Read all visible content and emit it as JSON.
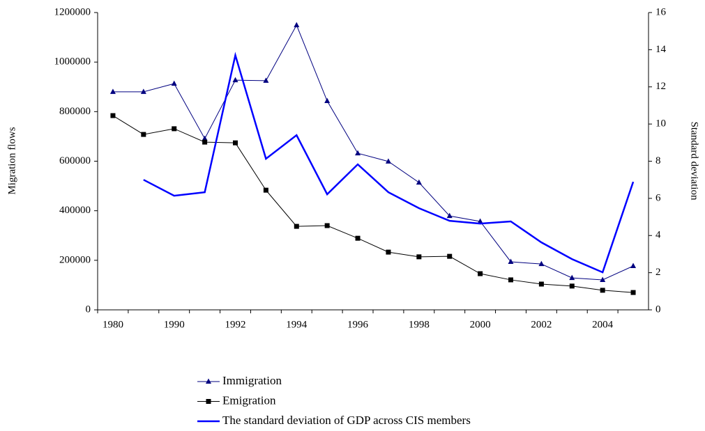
{
  "chart_data": {
    "type": "line",
    "categories": [
      "1980",
      null,
      "1990",
      null,
      "1992",
      null,
      "1994",
      null,
      "1996",
      null,
      "1998",
      null,
      "2000",
      null,
      "2002",
      null,
      "2004",
      null
    ],
    "ylabel": "Migration flows",
    "y2label": "Standard deviation",
    "ylim": [
      0,
      1200000
    ],
    "yticks": [
      0,
      200000,
      400000,
      600000,
      800000,
      1000000,
      1200000
    ],
    "y2lim": [
      0,
      16
    ],
    "y2ticks": [
      0,
      2,
      4,
      6,
      8,
      10,
      12,
      14,
      16
    ],
    "legend": "bottom",
    "series": [
      {
        "name": "Immigration",
        "color": "#000080",
        "marker": "triangle",
        "values": [
          880000,
          880000,
          913000,
          691000,
          927000,
          925000,
          1149000,
          843000,
          632000,
          599000,
          514000,
          379000,
          357000,
          194000,
          185000,
          129000,
          121000,
          177000
        ]
      },
      {
        "name": "Emigration",
        "color": "#000000",
        "marker": "square",
        "values": [
          784000,
          708000,
          731000,
          677000,
          674000,
          483000,
          337000,
          340000,
          289000,
          233000,
          214000,
          216000,
          146000,
          121000,
          104000,
          96000,
          79000,
          70000
        ]
      },
      {
        "name": "The standard deviation of GDP across CIS members",
        "color": "#0000ff",
        "axis": "y2",
        "values": [
          null,
          7.0,
          6.14,
          6.33,
          13.7,
          8.13,
          9.4,
          6.22,
          7.83,
          6.33,
          5.47,
          4.79,
          4.64,
          4.76,
          3.63,
          2.73,
          2.02,
          6.89
        ]
      }
    ]
  }
}
